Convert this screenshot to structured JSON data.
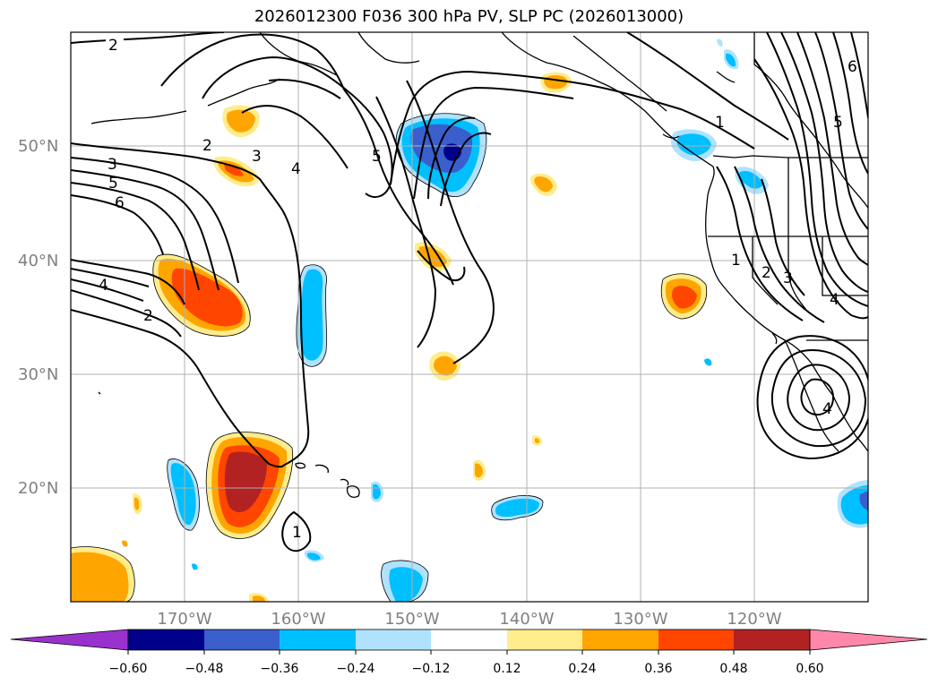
{
  "title": "2026012300 F036 300 hPa PV, SLP PC (2026013000)",
  "map": {
    "lat_labels": [
      "50°N",
      "40°N",
      "30°N",
      "20°N"
    ],
    "lon_labels": [
      "170°W",
      "160°W",
      "150°W",
      "140°W",
      "130°W",
      "120°W"
    ],
    "contour_labels": [
      "2",
      "2",
      "3",
      "3",
      "4",
      "5",
      "6",
      "4",
      "2",
      "5",
      "1",
      "1",
      "2",
      "3",
      "4",
      "5",
      "6",
      "4",
      "1"
    ]
  },
  "colorbar": {
    "levels": [
      "−0.60",
      "−0.48",
      "−0.36",
      "−0.24",
      "−0.12",
      "0.12",
      "0.24",
      "0.36",
      "0.48",
      "0.60"
    ],
    "colors": [
      "#9932cc",
      "#00008b",
      "#3a5fcd",
      "#00bfff",
      "#b0e2ff",
      "#ffffff",
      "#ffec8b",
      "#ffa500",
      "#ff4500",
      "#b22222",
      "#ff88aa"
    ]
  }
}
